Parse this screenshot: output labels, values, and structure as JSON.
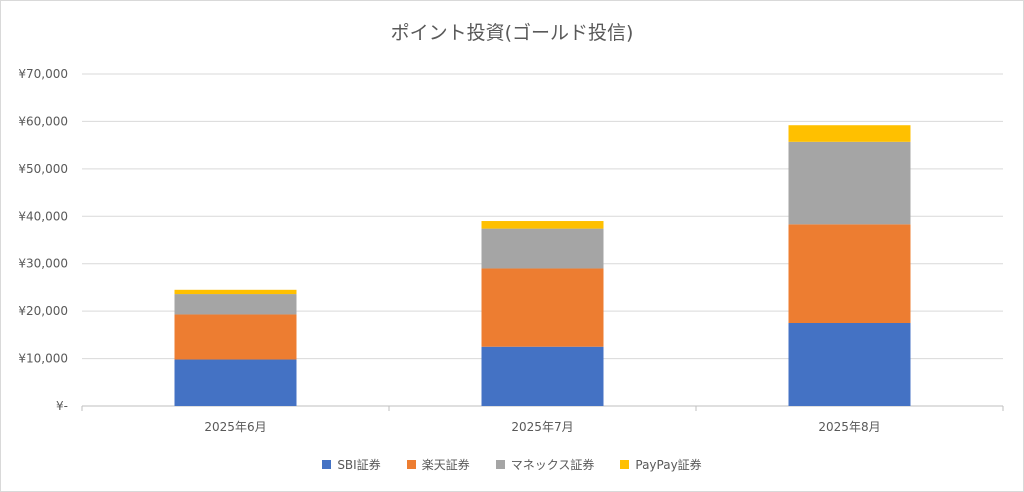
{
  "chart_data": {
    "type": "bar",
    "stacked": true,
    "title": "ポイント投資(ゴールド投信)",
    "xlabel": "",
    "ylabel": "",
    "categories": [
      "2025年6月",
      "2025年7月",
      "2025年8月"
    ],
    "series": [
      {
        "name": "SBI証券",
        "color": "#4472C4",
        "values": [
          9800,
          12500,
          17500
        ]
      },
      {
        "name": "楽天証券",
        "color": "#ED7D31",
        "values": [
          9500,
          16500,
          20800
        ]
      },
      {
        "name": "マネックス証券",
        "color": "#A5A5A5",
        "values": [
          4300,
          8400,
          17400
        ]
      },
      {
        "name": "PayPay証券",
        "color": "#FFC000",
        "values": [
          900,
          1600,
          3500
        ]
      }
    ],
    "ylim": [
      0,
      70000
    ],
    "yticks": [
      0,
      10000,
      20000,
      30000,
      40000,
      50000,
      60000,
      70000
    ],
    "ytick_labels": [
      "¥-",
      "¥10,000",
      "¥20,000",
      "¥30,000",
      "¥40,000",
      "¥50,000",
      "¥60,000",
      "¥70,000"
    ],
    "grid": true,
    "legend_position": "bottom"
  }
}
